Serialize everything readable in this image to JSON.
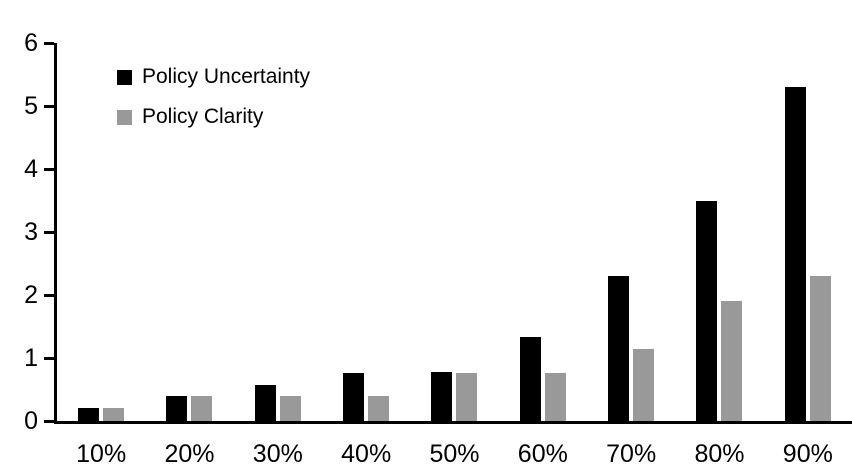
{
  "chart_data": {
    "type": "bar",
    "title": "",
    "xlabel": "",
    "ylabel": "",
    "categories": [
      "10%",
      "20%",
      "30%",
      "40%",
      "50%",
      "60%",
      "70%",
      "80%",
      "90%"
    ],
    "series": [
      {
        "name": "Policy Uncertainty",
        "color": "#000000",
        "values": [
          0.2,
          0.4,
          0.57,
          0.77,
          0.78,
          1.33,
          2.3,
          3.5,
          5.3
        ]
      },
      {
        "name": "Policy Clarity",
        "color": "#999999",
        "values": [
          0.2,
          0.4,
          0.4,
          0.4,
          0.77,
          0.77,
          1.15,
          1.9,
          2.3
        ]
      }
    ],
    "ylim": [
      0,
      6
    ],
    "yticks": [
      0,
      1,
      2,
      3,
      4,
      5,
      6
    ],
    "grid": false,
    "legend_position": "top-left-inside",
    "axis_color": "#000000",
    "text_color": "#000000",
    "background_color": "#ffffff"
  }
}
